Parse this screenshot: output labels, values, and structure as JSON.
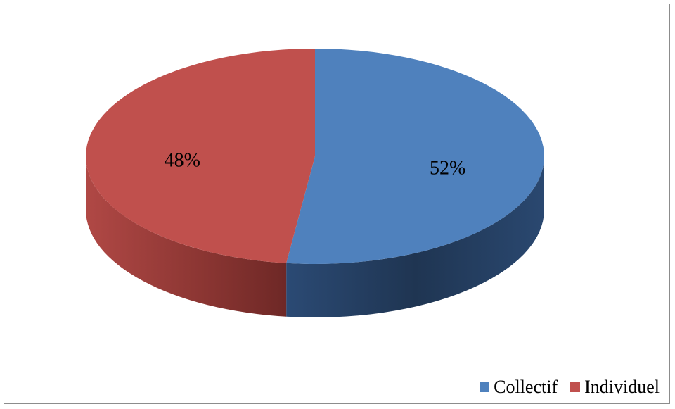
{
  "chart_data": {
    "type": "pie",
    "style": "3d",
    "categories": [
      "Collectif",
      "Individuel"
    ],
    "values": [
      52,
      48
    ],
    "data_labels": [
      "52%",
      "48%"
    ],
    "colors": [
      "#4f81bd",
      "#c0504d"
    ],
    "side_colors": [
      "#233c5e",
      "#7a2f2d"
    ],
    "legend_position": "bottom-right",
    "title": ""
  }
}
